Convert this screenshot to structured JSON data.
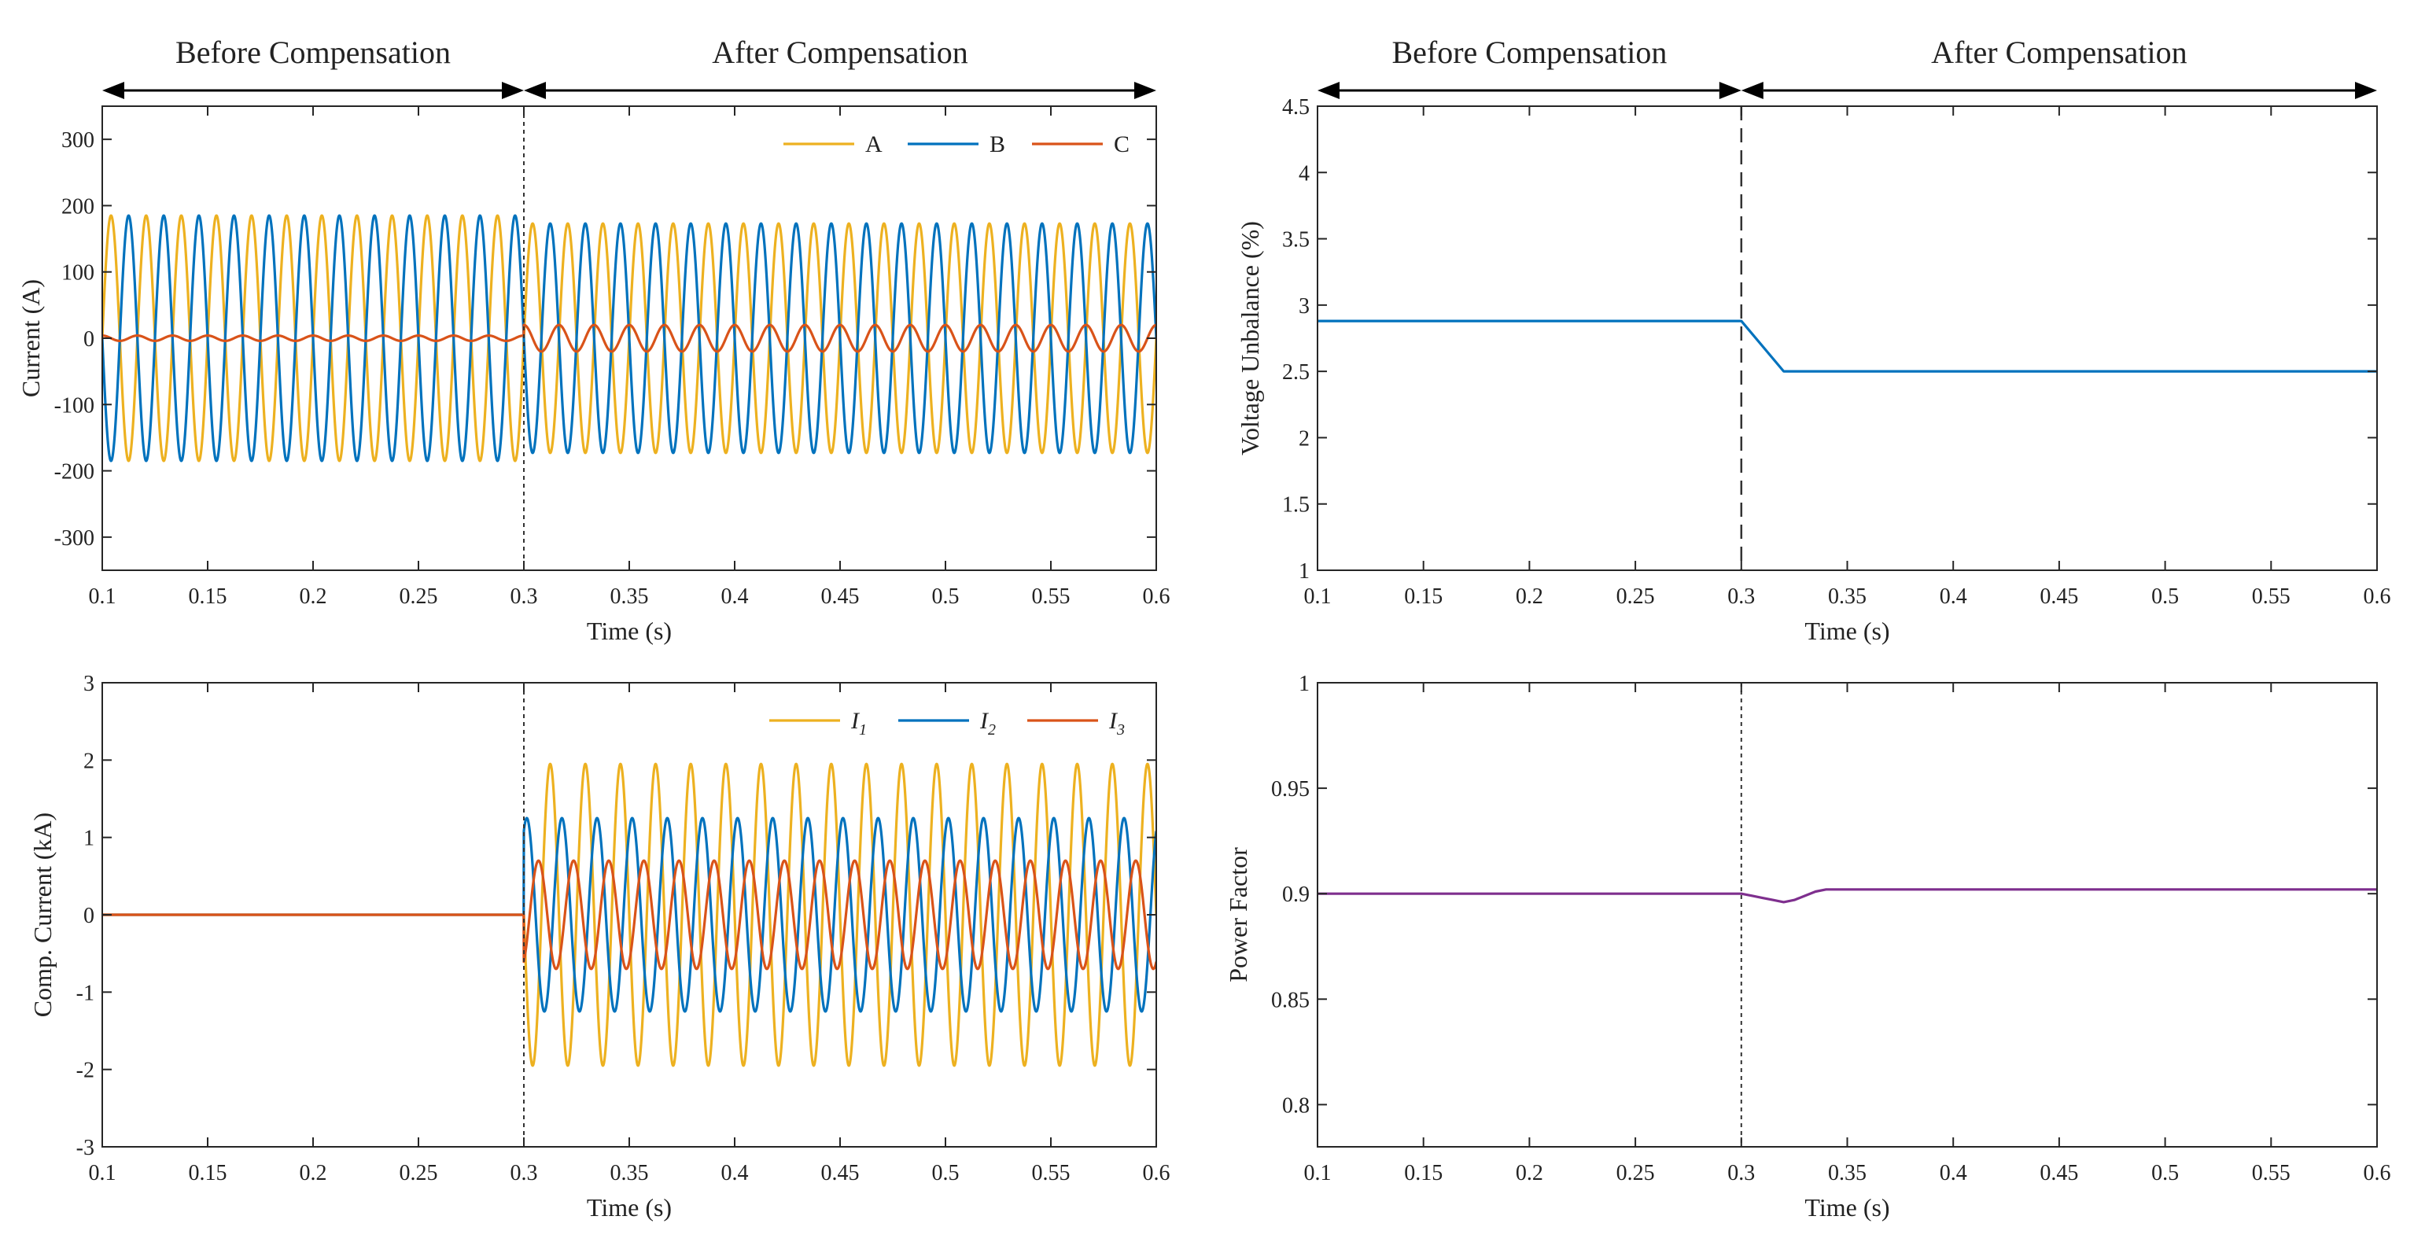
{
  "colors": {
    "A": "#EDB120",
    "B": "#0072BD",
    "C": "#D95319",
    "purple": "#7E2F8E",
    "axis": "#262626"
  },
  "chart_data": [
    {
      "id": "current",
      "type": "line",
      "xlabel": "Time (s)",
      "ylabel": "Current (A)",
      "xlim": [
        0.1,
        0.6
      ],
      "ylim": [
        -350,
        350
      ],
      "xticks": [
        0.1,
        0.15,
        0.2,
        0.25,
        0.3,
        0.35,
        0.4,
        0.45,
        0.5,
        0.55,
        0.6
      ],
      "yticks": [
        -300,
        -200,
        -100,
        0,
        100,
        200,
        300
      ],
      "xtick_labels": [
        "0.1",
        "0.15",
        "0.2",
        "0.25",
        "0.3",
        "0.35",
        "0.4",
        "0.45",
        "0.5",
        "0.55",
        "0.6"
      ],
      "ytick_labels": [
        "-300",
        "-200",
        "-100",
        "0",
        "100",
        "200",
        "300"
      ],
      "grid": false,
      "legend": "top-right",
      "event_x": 0.3,
      "regions": [
        "Before Compensation",
        "After Compensation"
      ],
      "series": [
        {
          "name": "A",
          "color_key": "A",
          "frequency_hz": 60,
          "amplitude_before": 185,
          "amplitude_after": 173,
          "phase_deg": 0
        },
        {
          "name": "B",
          "color_key": "B",
          "frequency_hz": 60,
          "amplitude_before": 185,
          "amplitude_after": 173,
          "phase_deg": 180
        },
        {
          "name": "C",
          "color_key": "C",
          "frequency_hz": 60,
          "amplitude_before": 4,
          "amplitude_after": 20,
          "phase_deg": 90
        }
      ]
    },
    {
      "id": "unbalance",
      "type": "line",
      "xlabel": "Time (s)",
      "ylabel": "Voltage Unbalance (%)",
      "xlim": [
        0.1,
        0.6
      ],
      "ylim": [
        1,
        4.5
      ],
      "xticks": [
        0.1,
        0.15,
        0.2,
        0.25,
        0.3,
        0.35,
        0.4,
        0.45,
        0.5,
        0.55,
        0.6
      ],
      "yticks": [
        1,
        1.5,
        2,
        2.5,
        3,
        3.5,
        4,
        4.5
      ],
      "xtick_labels": [
        "0.1",
        "0.15",
        "0.2",
        "0.25",
        "0.3",
        "0.35",
        "0.4",
        "0.45",
        "0.5",
        "0.55",
        "0.6"
      ],
      "ytick_labels": [
        "1",
        "1.5",
        "2",
        "2.5",
        "3",
        "3.5",
        "4",
        "4.5"
      ],
      "grid": false,
      "event_x": 0.3,
      "regions": [
        "Before Compensation",
        "After Compensation"
      ],
      "series": [
        {
          "color_key": "B",
          "x": [
            0.1,
            0.3,
            0.32,
            0.34,
            0.6
          ],
          "y": [
            2.88,
            2.88,
            2.5,
            2.5,
            2.5
          ]
        }
      ]
    },
    {
      "id": "comp_current",
      "type": "line",
      "xlabel": "Time (s)",
      "ylabel": "Comp. Current (kA)",
      "xlim": [
        0.1,
        0.6
      ],
      "ylim": [
        -3,
        3
      ],
      "xticks": [
        0.1,
        0.15,
        0.2,
        0.25,
        0.3,
        0.35,
        0.4,
        0.45,
        0.5,
        0.55,
        0.6
      ],
      "yticks": [
        -3,
        -2,
        -1,
        0,
        1,
        2,
        3
      ],
      "xtick_labels": [
        "0.1",
        "0.15",
        "0.2",
        "0.25",
        "0.3",
        "0.35",
        "0.4",
        "0.45",
        "0.5",
        "0.55",
        "0.6"
      ],
      "ytick_labels": [
        "-3",
        "-2",
        "-1",
        "0",
        "1",
        "2",
        "3"
      ],
      "grid": false,
      "legend": "top-right",
      "event_x": 0.3,
      "series": [
        {
          "name": "I",
          "sub": "1",
          "color_key": "A",
          "frequency_hz": 60,
          "amplitude_before": 0,
          "amplitude_after": 1.95,
          "phase_deg": 180
        },
        {
          "name": "I",
          "sub": "2",
          "color_key": "B",
          "frequency_hz": 60,
          "amplitude_before": 0,
          "amplitude_after": 1.25,
          "phase_deg": 60
        },
        {
          "name": "I",
          "sub": "3",
          "color_key": "C",
          "frequency_hz": 60,
          "amplitude_before": 0,
          "amplitude_after": 0.7,
          "phase_deg": -60
        }
      ]
    },
    {
      "id": "power_factor",
      "type": "line",
      "xlabel": "Time (s)",
      "ylabel": "Power Factor",
      "xlim": [
        0.1,
        0.6
      ],
      "ylim": [
        0.78,
        1
      ],
      "xticks": [
        0.1,
        0.15,
        0.2,
        0.25,
        0.3,
        0.35,
        0.4,
        0.45,
        0.5,
        0.55,
        0.6
      ],
      "yticks": [
        0.8,
        0.85,
        0.9,
        0.95,
        1
      ],
      "xtick_labels": [
        "0.1",
        "0.15",
        "0.2",
        "0.25",
        "0.3",
        "0.35",
        "0.4",
        "0.45",
        "0.5",
        "0.55",
        "0.6"
      ],
      "ytick_labels": [
        "0.8",
        "0.85",
        "0.9",
        "0.95",
        "1"
      ],
      "grid": false,
      "event_x": 0.3,
      "series": [
        {
          "color_key": "purple",
          "x": [
            0.1,
            0.3,
            0.305,
            0.31,
            0.315,
            0.32,
            0.325,
            0.33,
            0.335,
            0.34,
            0.6
          ],
          "y": [
            0.9,
            0.9,
            0.899,
            0.898,
            0.897,
            0.896,
            0.897,
            0.899,
            0.901,
            0.902,
            0.902
          ]
        }
      ]
    }
  ]
}
